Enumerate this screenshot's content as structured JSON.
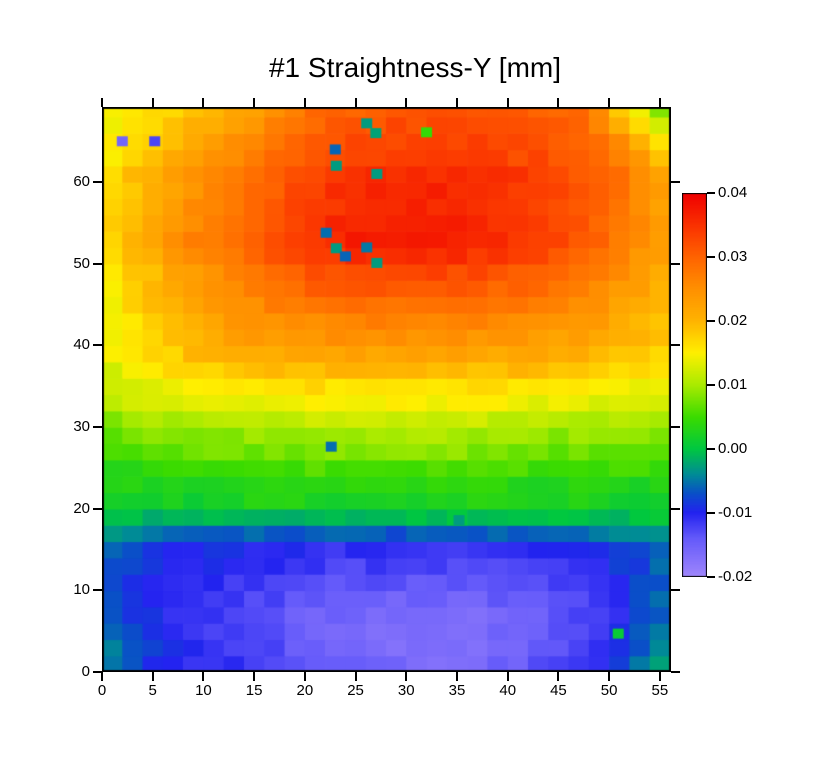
{
  "chart": {
    "title": "#1 Straightness-Y [mm]"
  },
  "chart_data": {
    "type": "heatmap",
    "title": "#1 Straightness-Y [mm]",
    "xlabel": "",
    "ylabel": "",
    "x_range": [
      0,
      56.1
    ],
    "y_range": [
      0,
      69.2
    ],
    "x_tick_values": [
      0,
      5,
      10,
      15,
      20,
      25,
      30,
      35,
      40,
      45,
      50,
      55
    ],
    "x_tick_labels": [
      "0",
      "5",
      "10",
      "15",
      "20",
      "25",
      "30",
      "35",
      "40",
      "45",
      "50",
      "55"
    ],
    "y_tick_values": [
      0,
      10,
      20,
      30,
      40,
      50,
      60
    ],
    "y_tick_labels": [
      "0",
      "10",
      "20",
      "30",
      "40",
      "50",
      "60"
    ],
    "grid_lines": false,
    "legend": "colorbar-right",
    "colorbar": {
      "min": -0.02,
      "max": 0.04,
      "tick_values": [
        0.04,
        0.03,
        0.02,
        0.01,
        0.0,
        -0.01,
        -0.02
      ],
      "tick_labels": [
        "0.04",
        "0.03",
        "0.02",
        "0.01",
        "0.00",
        "-0.01",
        "-0.02"
      ],
      "colormap": [
        [
          0.04,
          240,
          0,
          0
        ],
        [
          0.034,
          252,
          60,
          0
        ],
        [
          0.03,
          255,
          100,
          0
        ],
        [
          0.025,
          255,
          145,
          0
        ],
        [
          0.02,
          255,
          180,
          0
        ],
        [
          0.015,
          255,
          240,
          0
        ],
        [
          0.01,
          170,
          235,
          0
        ],
        [
          0.005,
          60,
          220,
          0
        ],
        [
          0.0,
          0,
          200,
          65
        ],
        [
          -0.004,
          0,
          140,
          150
        ],
        [
          -0.007,
          10,
          80,
          200
        ],
        [
          -0.01,
          35,
          35,
          240
        ],
        [
          -0.014,
          100,
          90,
          250
        ],
        [
          -0.02,
          160,
          135,
          252
        ]
      ]
    },
    "surface_cell_size": [
      2,
      2
    ],
    "grid": {
      "x0": 0,
      "x_step": 4,
      "y0": 0,
      "y_step": 4,
      "note": "values[row][col], rows bottom-up y=0..68, cols x=0..56, straightness deviation in mm",
      "values": [
        [
          -0.002,
          -0.008,
          -0.01,
          -0.011,
          -0.012,
          -0.014,
          -0.015,
          -0.016,
          -0.016,
          -0.016,
          -0.015,
          -0.013,
          -0.011,
          -0.007,
          -0.001
        ],
        [
          -0.005,
          -0.009,
          -0.011,
          -0.012,
          -0.013,
          -0.015,
          -0.016,
          -0.017,
          -0.017,
          -0.017,
          -0.016,
          -0.014,
          -0.012,
          -0.008,
          -0.003
        ],
        [
          -0.006,
          -0.009,
          -0.01,
          -0.012,
          -0.013,
          -0.014,
          -0.015,
          -0.016,
          -0.016,
          -0.016,
          -0.015,
          -0.014,
          -0.012,
          -0.009,
          -0.005
        ],
        [
          -0.006,
          -0.009,
          -0.01,
          -0.011,
          -0.011,
          -0.012,
          -0.013,
          -0.013,
          -0.013,
          -0.013,
          -0.013,
          -0.012,
          -0.011,
          -0.009,
          -0.005
        ],
        [
          -0.005,
          -0.008,
          -0.009,
          -0.009,
          -0.01,
          -0.01,
          -0.01,
          -0.01,
          -0.01,
          -0.01,
          -0.01,
          -0.009,
          -0.009,
          -0.007,
          -0.004
        ],
        [
          0.001,
          0.001,
          0.001,
          0.002,
          0.002,
          0.002,
          0.002,
          0.002,
          0.002,
          0.002,
          0.002,
          0.002,
          0.002,
          0.001,
          0.001
        ],
        [
          0.003,
          0.004,
          0.004,
          0.004,
          0.005,
          0.005,
          0.005,
          0.005,
          0.005,
          0.005,
          0.005,
          0.004,
          0.004,
          0.004,
          0.004
        ],
        [
          0.006,
          0.007,
          0.008,
          0.008,
          0.008,
          0.009,
          0.009,
          0.009,
          0.009,
          0.009,
          0.008,
          0.008,
          0.008,
          0.008,
          0.007
        ],
        [
          0.009,
          0.011,
          0.012,
          0.012,
          0.013,
          0.013,
          0.013,
          0.013,
          0.013,
          0.013,
          0.013,
          0.012,
          0.012,
          0.011,
          0.01
        ],
        [
          0.012,
          0.014,
          0.016,
          0.017,
          0.018,
          0.018,
          0.018,
          0.018,
          0.018,
          0.018,
          0.018,
          0.017,
          0.017,
          0.016,
          0.014
        ],
        [
          0.013,
          0.016,
          0.019,
          0.021,
          0.022,
          0.023,
          0.023,
          0.023,
          0.023,
          0.023,
          0.023,
          0.022,
          0.021,
          0.019,
          0.017
        ],
        [
          0.014,
          0.018,
          0.021,
          0.024,
          0.026,
          0.027,
          0.028,
          0.028,
          0.028,
          0.028,
          0.027,
          0.026,
          0.025,
          0.022,
          0.019
        ],
        [
          0.015,
          0.019,
          0.023,
          0.026,
          0.029,
          0.031,
          0.032,
          0.033,
          0.033,
          0.032,
          0.031,
          0.03,
          0.028,
          0.024,
          0.021
        ],
        [
          0.016,
          0.02,
          0.025,
          0.028,
          0.031,
          0.034,
          0.036,
          0.037,
          0.037,
          0.036,
          0.035,
          0.033,
          0.031,
          0.026,
          0.022
        ],
        [
          0.016,
          0.02,
          0.025,
          0.028,
          0.031,
          0.034,
          0.036,
          0.037,
          0.037,
          0.036,
          0.035,
          0.034,
          0.031,
          0.027,
          0.022
        ],
        [
          0.016,
          0.02,
          0.024,
          0.027,
          0.03,
          0.033,
          0.035,
          0.036,
          0.036,
          0.036,
          0.035,
          0.034,
          0.031,
          0.027,
          0.022
        ],
        [
          0.014,
          0.018,
          0.021,
          0.025,
          0.028,
          0.031,
          0.033,
          0.034,
          0.034,
          0.034,
          0.033,
          0.032,
          0.03,
          0.026,
          0.017
        ],
        [
          0.013,
          0.015,
          0.018,
          0.02,
          0.024,
          0.028,
          0.03,
          0.031,
          0.031,
          0.031,
          0.03,
          0.03,
          0.028,
          0.016,
          0.006
        ]
      ]
    },
    "outliers": [
      {
        "x": 2.0,
        "y": 65.0,
        "v": -0.0155
      },
      {
        "x": 5.2,
        "y": 65.0,
        "v": -0.0125
      },
      {
        "x": 26.1,
        "y": 67.2,
        "v": -0.003
      },
      {
        "x": 27.0,
        "y": 66.0,
        "v": -0.0025
      },
      {
        "x": 32.0,
        "y": 66.1,
        "v": 0.0045
      },
      {
        "x": 23.0,
        "y": 64.0,
        "v": -0.006
      },
      {
        "x": 23.1,
        "y": 62.0,
        "v": -0.003
      },
      {
        "x": 27.1,
        "y": 61.0,
        "v": -0.003
      },
      {
        "x": 22.1,
        "y": 53.8,
        "v": -0.0055
      },
      {
        "x": 23.1,
        "y": 51.9,
        "v": -0.003
      },
      {
        "x": 26.1,
        "y": 52.0,
        "v": -0.005
      },
      {
        "x": 24.0,
        "y": 50.9,
        "v": -0.006
      },
      {
        "x": 27.1,
        "y": 50.1,
        "v": -0.003
      },
      {
        "x": 22.6,
        "y": 27.6,
        "v": -0.0055
      },
      {
        "x": 35.2,
        "y": 18.6,
        "v": -0.003
      },
      {
        "x": 50.9,
        "y": 4.7,
        "v": 0.0008
      }
    ]
  }
}
